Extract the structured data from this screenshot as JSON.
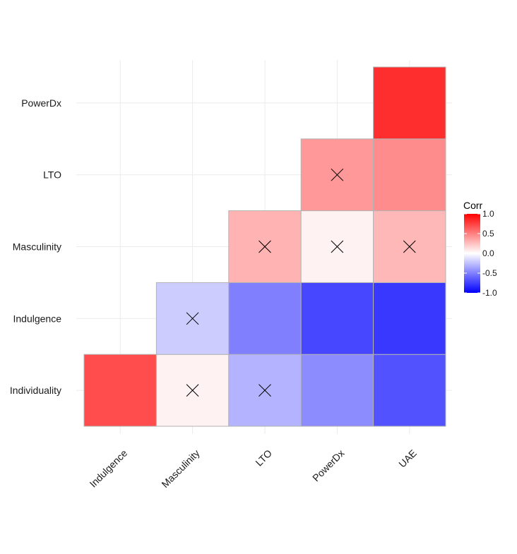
{
  "chart_data": {
    "type": "heatmap",
    "x_categories": [
      "Indulgence",
      "Masculinity",
      "LTO",
      "PowerDx",
      "UAE"
    ],
    "y_categories": [
      "Individuality",
      "Indulgence",
      "Masculinity",
      "LTO",
      "PowerDx"
    ],
    "cells": [
      {
        "x": "Indulgence",
        "y": "Individuality",
        "value": 0.7,
        "insignificant": false
      },
      {
        "x": "Masculinity",
        "y": "Individuality",
        "value": 0.05,
        "insignificant": true
      },
      {
        "x": "LTO",
        "y": "Individuality",
        "value": -0.3,
        "insignificant": true
      },
      {
        "x": "PowerDx",
        "y": "Individuality",
        "value": -0.45,
        "insignificant": false
      },
      {
        "x": "UAE",
        "y": "Individuality",
        "value": -0.68,
        "insignificant": false
      },
      {
        "x": "Masculinity",
        "y": "Indulgence",
        "value": -0.2,
        "insignificant": true
      },
      {
        "x": "LTO",
        "y": "Indulgence",
        "value": -0.5,
        "insignificant": false
      },
      {
        "x": "PowerDx",
        "y": "Indulgence",
        "value": -0.72,
        "insignificant": false
      },
      {
        "x": "UAE",
        "y": "Indulgence",
        "value": -0.78,
        "insignificant": false
      },
      {
        "x": "LTO",
        "y": "Masculinity",
        "value": 0.3,
        "insignificant": true
      },
      {
        "x": "PowerDx",
        "y": "Masculinity",
        "value": 0.05,
        "insignificant": true
      },
      {
        "x": "UAE",
        "y": "Masculinity",
        "value": 0.28,
        "insignificant": true
      },
      {
        "x": "PowerDx",
        "y": "LTO",
        "value": 0.4,
        "insignificant": true
      },
      {
        "x": "UAE",
        "y": "LTO",
        "value": 0.45,
        "insignificant": false
      },
      {
        "x": "UAE",
        "y": "PowerDx",
        "value": 0.82,
        "insignificant": false
      }
    ],
    "legend": {
      "title": "Corr",
      "ticks": [
        {
          "value": 1.0,
          "label": "1.0"
        },
        {
          "value": 0.5,
          "label": "0.5"
        },
        {
          "value": 0.0,
          "label": "0.0"
        },
        {
          "value": -0.5,
          "label": "-0.5"
        },
        {
          "value": -1.0,
          "label": "-1.0"
        }
      ],
      "range": [
        -1,
        1
      ],
      "placement": "right"
    },
    "colors": {
      "low": "#0000ff",
      "mid": "#ffffff",
      "high": "#ff0000"
    },
    "insignificant_marker": "X",
    "grid": true
  }
}
